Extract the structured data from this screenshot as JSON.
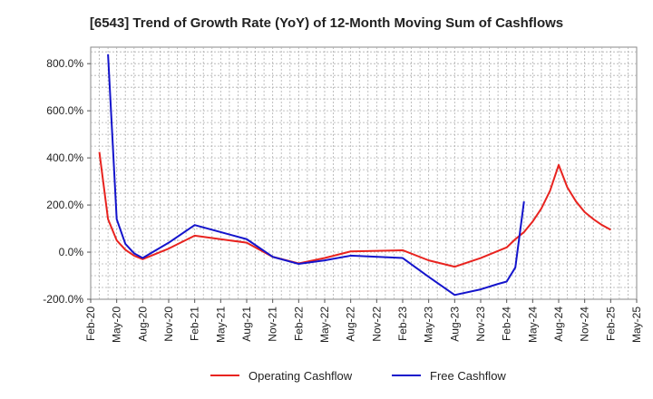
{
  "chart_data": {
    "type": "line",
    "title": "[6543]  Trend of Growth Rate (YoY) of 12-Month Moving Sum of Cashflows",
    "xlabel": "",
    "ylabel": "",
    "ylim": [
      -200,
      870
    ],
    "yticks": [
      "-200.0%",
      "0.0%",
      "200.0%",
      "400.0%",
      "600.0%",
      "800.0%"
    ],
    "ytick_values": [
      -200,
      0,
      200,
      400,
      600,
      800
    ],
    "xticks": [
      "Feb-20",
      "May-20",
      "Aug-20",
      "Nov-20",
      "Feb-21",
      "May-21",
      "Aug-21",
      "Nov-21",
      "Feb-22",
      "May-22",
      "Aug-22",
      "Nov-22",
      "Feb-23",
      "May-23",
      "Aug-23",
      "Nov-23",
      "Feb-24",
      "May-24",
      "Aug-24",
      "Nov-24",
      "Feb-25",
      "May-25"
    ],
    "grid": true,
    "legend_position": "bottom",
    "series": [
      {
        "name": "Operating Cashflow",
        "color": "#e8231f",
        "points": [
          [
            "Mar-20",
            425
          ],
          [
            "Apr-20",
            140
          ],
          [
            "May-20",
            50
          ],
          [
            "Jun-20",
            10
          ],
          [
            "Jul-20",
            -15
          ],
          [
            "Aug-20",
            -30
          ],
          [
            "Nov-20",
            15
          ],
          [
            "Feb-21",
            70
          ],
          [
            "Aug-21",
            40
          ],
          [
            "Nov-21",
            -20
          ],
          [
            "Feb-22",
            -48
          ],
          [
            "May-22",
            -25
          ],
          [
            "Aug-22",
            3
          ],
          [
            "Feb-23",
            8
          ],
          [
            "May-23",
            -35
          ],
          [
            "Aug-23",
            -62
          ],
          [
            "Nov-23",
            -25
          ],
          [
            "Feb-24",
            20
          ],
          [
            "Mar-24",
            55
          ],
          [
            "Apr-24",
            85
          ],
          [
            "May-24",
            130
          ],
          [
            "Jun-24",
            185
          ],
          [
            "Jul-24",
            260
          ],
          [
            "Aug-24",
            370
          ],
          [
            "Sep-24",
            275
          ],
          [
            "Oct-24",
            215
          ],
          [
            "Nov-24",
            170
          ],
          [
            "Dec-24",
            140
          ],
          [
            "Jan-25",
            115
          ],
          [
            "Feb-25",
            95
          ]
        ]
      },
      {
        "name": "Free Cashflow",
        "color": "#1414cc",
        "points": [
          [
            "Apr-20",
            840
          ],
          [
            "May-20",
            140
          ],
          [
            "Jun-20",
            35
          ],
          [
            "Jul-20",
            -5
          ],
          [
            "Aug-20",
            -25
          ],
          [
            "Nov-20",
            40
          ],
          [
            "Feb-21",
            115
          ],
          [
            "Aug-21",
            55
          ],
          [
            "Nov-21",
            -20
          ],
          [
            "Feb-22",
            -50
          ],
          [
            "May-22",
            -35
          ],
          [
            "Aug-22",
            -15
          ],
          [
            "Feb-23",
            -25
          ],
          [
            "May-23",
            -105
          ],
          [
            "Aug-23",
            -182
          ],
          [
            "Nov-23",
            -158
          ],
          [
            "Jan-24",
            -135
          ],
          [
            "Feb-24",
            -125
          ],
          [
            "Mar-24",
            -65
          ],
          [
            "Apr-24",
            215
          ]
        ]
      }
    ]
  }
}
